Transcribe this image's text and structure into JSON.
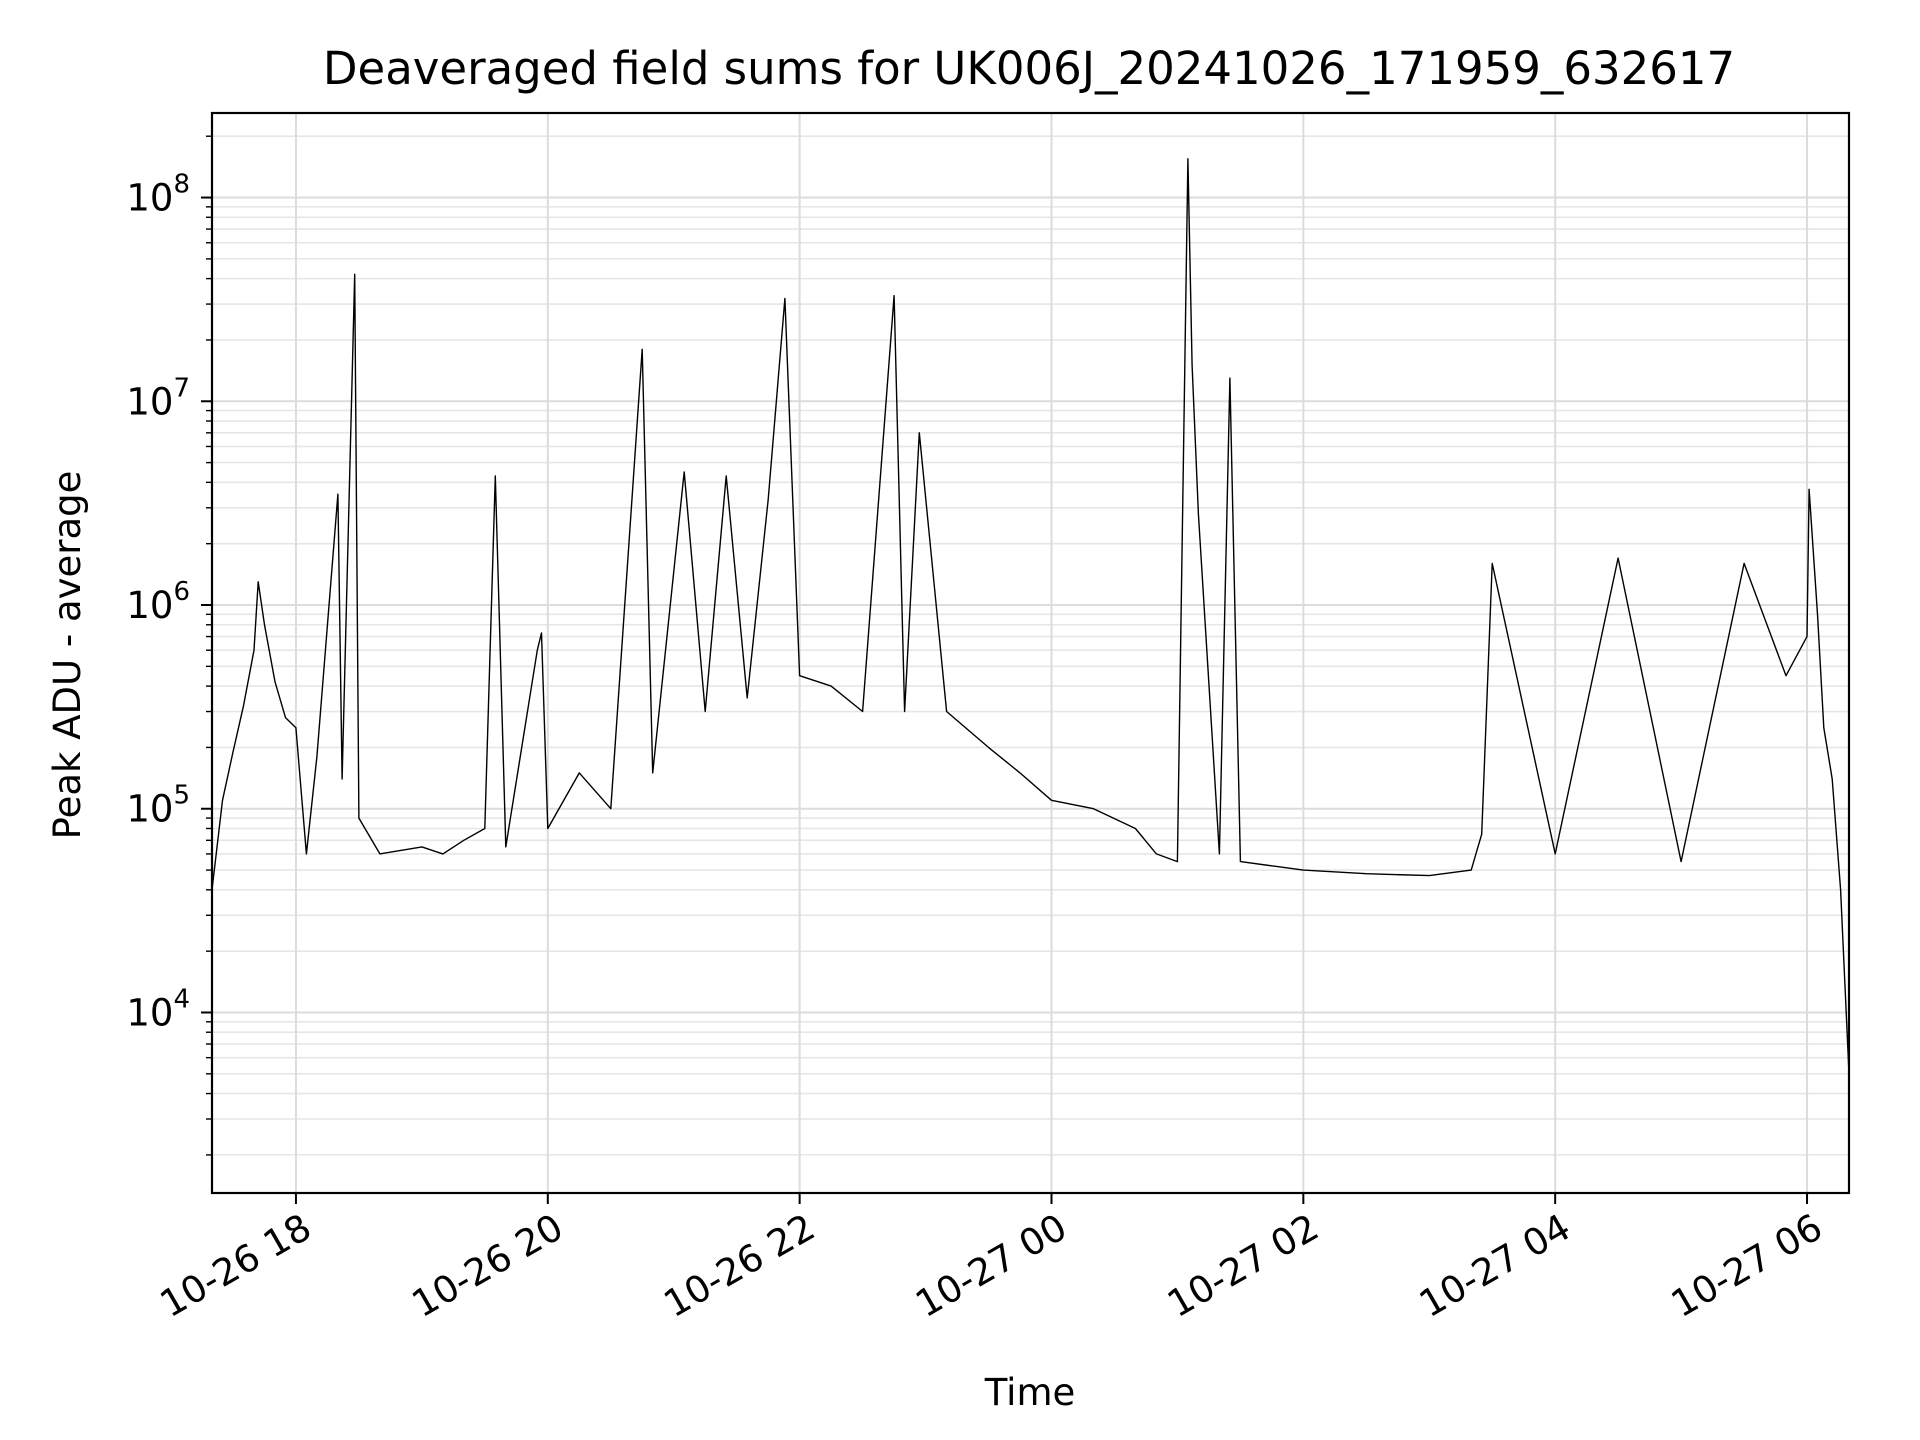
{
  "chart_data": {
    "type": "line",
    "title": "Deaveraged field sums for UK006J_20241026_171959_632617",
    "xlabel": "Time",
    "ylabel": "Peak ADU - average",
    "yscale": "log",
    "ylim": [
      1300,
      260000000
    ],
    "xlim": [
      "2024-10-26T17:20:00",
      "2024-10-27T06:20:00"
    ],
    "grid": true,
    "line_color": "#000000",
    "x_ticks": [
      {
        "value": "2024-10-26T18:00:00",
        "label": "10-26 18"
      },
      {
        "value": "2024-10-26T20:00:00",
        "label": "10-26 20"
      },
      {
        "value": "2024-10-26T22:00:00",
        "label": "10-26 22"
      },
      {
        "value": "2024-10-27T00:00:00",
        "label": "10-27 00"
      },
      {
        "value": "2024-10-27T02:00:00",
        "label": "10-27 02"
      },
      {
        "value": "2024-10-27T04:00:00",
        "label": "10-27 04"
      },
      {
        "value": "2024-10-27T06:00:00",
        "label": "10-27 06"
      }
    ],
    "y_ticks": [
      {
        "value": 10000,
        "base": "10",
        "exp": "4"
      },
      {
        "value": 100000,
        "base": "10",
        "exp": "5"
      },
      {
        "value": 1000000,
        "base": "10",
        "exp": "6"
      },
      {
        "value": 10000000,
        "base": "10",
        "exp": "7"
      },
      {
        "value": 100000000,
        "base": "10",
        "exp": "8"
      }
    ],
    "series": [
      {
        "values": [
          [
            "2024-10-26T17:20:00",
            40000
          ],
          [
            "2024-10-26T17:25:00",
            110000
          ],
          [
            "2024-10-26T17:30:00",
            190000
          ],
          [
            "2024-10-26T17:35:00",
            320000
          ],
          [
            "2024-10-26T17:40:00",
            600000
          ],
          [
            "2024-10-26T17:42:00",
            1300000
          ],
          [
            "2024-10-26T17:45:00",
            800000
          ],
          [
            "2024-10-26T17:50:00",
            420000
          ],
          [
            "2024-10-26T17:55:00",
            280000
          ],
          [
            "2024-10-26T18:00:00",
            250000
          ],
          [
            "2024-10-26T18:05:00",
            60000
          ],
          [
            "2024-10-26T18:10:00",
            180000
          ],
          [
            "2024-10-26T18:20:00",
            3500000
          ],
          [
            "2024-10-26T18:22:00",
            140000
          ],
          [
            "2024-10-26T18:28:00",
            42000000
          ],
          [
            "2024-10-26T18:30:00",
            90000
          ],
          [
            "2024-10-26T18:40:00",
            60000
          ],
          [
            "2024-10-26T19:00:00",
            65000
          ],
          [
            "2024-10-26T19:10:00",
            60000
          ],
          [
            "2024-10-26T19:20:00",
            70000
          ],
          [
            "2024-10-26T19:30:00",
            80000
          ],
          [
            "2024-10-26T19:35:00",
            4300000
          ],
          [
            "2024-10-26T19:40:00",
            65000
          ],
          [
            "2024-10-26T19:55:00",
            600000
          ],
          [
            "2024-10-26T19:57:00",
            730000
          ],
          [
            "2024-10-26T20:00:00",
            80000
          ],
          [
            "2024-10-26T20:15:00",
            150000
          ],
          [
            "2024-10-26T20:30:00",
            100000
          ],
          [
            "2024-10-26T20:45:00",
            18000000
          ],
          [
            "2024-10-26T20:50:00",
            150000
          ],
          [
            "2024-10-26T21:05:00",
            4500000
          ],
          [
            "2024-10-26T21:15:00",
            300000
          ],
          [
            "2024-10-26T21:25:00",
            4300000
          ],
          [
            "2024-10-26T21:35:00",
            350000
          ],
          [
            "2024-10-26T21:45:00",
            3300000
          ],
          [
            "2024-10-26T21:53:00",
            32000000
          ],
          [
            "2024-10-26T22:00:00",
            450000
          ],
          [
            "2024-10-26T22:15:00",
            400000
          ],
          [
            "2024-10-26T22:30:00",
            300000
          ],
          [
            "2024-10-26T22:45:00",
            33000000
          ],
          [
            "2024-10-26T22:50:00",
            300000
          ],
          [
            "2024-10-26T22:57:00",
            7000000
          ],
          [
            "2024-10-26T23:10:00",
            300000
          ],
          [
            "2024-10-26T23:30:00",
            200000
          ],
          [
            "2024-10-26T23:45:00",
            150000
          ],
          [
            "2024-10-27T00:00:00",
            110000
          ],
          [
            "2024-10-27T00:20:00",
            100000
          ],
          [
            "2024-10-27T00:40:00",
            80000
          ],
          [
            "2024-10-27T00:50:00",
            60000
          ],
          [
            "2024-10-27T01:00:00",
            55000
          ],
          [
            "2024-10-27T01:05:00",
            155000000
          ],
          [
            "2024-10-27T01:07:00",
            15000000
          ],
          [
            "2024-10-27T01:10:00",
            2800000
          ],
          [
            "2024-10-27T01:20:00",
            60000
          ],
          [
            "2024-10-27T01:25:00",
            13000000
          ],
          [
            "2024-10-27T01:30:00",
            55000
          ],
          [
            "2024-10-27T02:00:00",
            50000
          ],
          [
            "2024-10-27T02:30:00",
            48000
          ],
          [
            "2024-10-27T03:00:00",
            47000
          ],
          [
            "2024-10-27T03:20:00",
            50000
          ],
          [
            "2024-10-27T03:25:00",
            75000
          ],
          [
            "2024-10-27T03:30:00",
            1600000
          ],
          [
            "2024-10-27T04:00:00",
            60000
          ],
          [
            "2024-10-27T04:30:00",
            1700000
          ],
          [
            "2024-10-27T05:00:00",
            55000
          ],
          [
            "2024-10-27T05:30:00",
            1600000
          ],
          [
            "2024-10-27T05:50:00",
            450000
          ],
          [
            "2024-10-27T06:00:00",
            700000
          ],
          [
            "2024-10-27T06:01:00",
            3700000
          ],
          [
            "2024-10-27T06:05:00",
            900000
          ],
          [
            "2024-10-27T06:08:00",
            250000
          ],
          [
            "2024-10-27T06:12:00",
            140000
          ],
          [
            "2024-10-27T06:16:00",
            40000
          ],
          [
            "2024-10-27T06:20:00",
            5000
          ]
        ]
      }
    ]
  }
}
